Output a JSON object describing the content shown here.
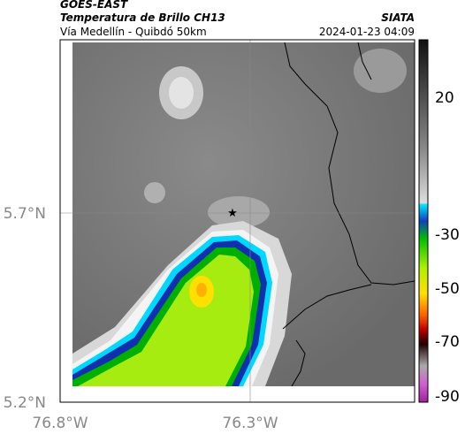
{
  "header": {
    "title": "GOES-EAST",
    "subtitle": "Temperatura de Brillo CH13",
    "location": "Vía Medellín - Quibdó 50km",
    "brand": "SIATA",
    "timestamp": "2024-01-23 04:09"
  },
  "axes": {
    "lat_labels": [
      "5.7°N",
      "5.2°N"
    ],
    "lon_labels": [
      "76.8°W",
      "76.3°W"
    ]
  },
  "colorbar": {
    "ticks": [
      20,
      -30,
      -50,
      -70,
      -90
    ]
  }
}
